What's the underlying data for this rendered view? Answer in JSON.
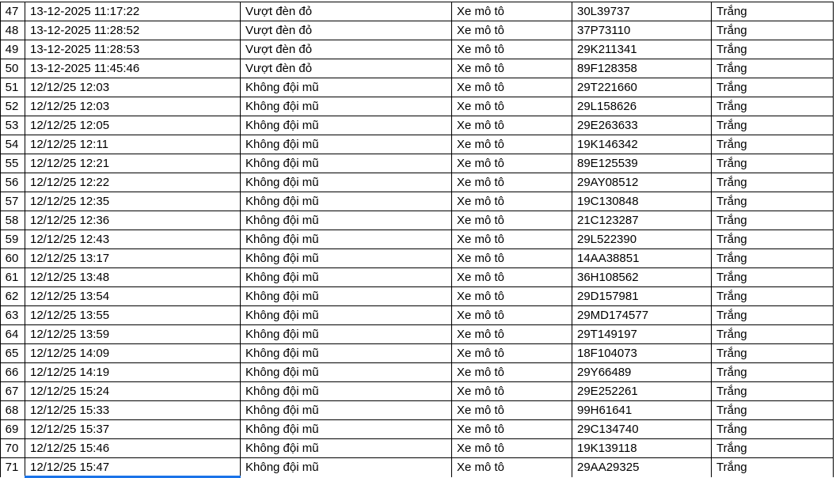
{
  "app": {
    "view": "spreadsheet-table",
    "grid_line_color": "#000000",
    "text_color": "#000000",
    "selection_border_color": "#1a73e8"
  },
  "table": {
    "rows": [
      {
        "no": "47",
        "datetime": "13-12-2025 11:17:22",
        "violation": "Vượt đèn đỏ",
        "vehicle": "Xe mô tô",
        "plate": "30L39737",
        "color": "Trắng"
      },
      {
        "no": "48",
        "datetime": "13-12-2025 11:28:52",
        "violation": "Vượt đèn đỏ",
        "vehicle": "Xe mô tô",
        "plate": "37P73110",
        "color": "Trắng"
      },
      {
        "no": "49",
        "datetime": "13-12-2025 11:28:53",
        "violation": "Vượt đèn đỏ",
        "vehicle": "Xe mô tô",
        "plate": "29K211341",
        "color": "Trắng"
      },
      {
        "no": "50",
        "datetime": "13-12-2025 11:45:46",
        "violation": "Vượt đèn đỏ",
        "vehicle": "Xe mô tô",
        "plate": "89F128358",
        "color": "Trắng"
      },
      {
        "no": "51",
        "datetime": "12/12/25 12:03",
        "violation": "Không đội mũ",
        "vehicle": "Xe mô tô",
        "plate": "29T221660",
        "color": "Trắng"
      },
      {
        "no": "52",
        "datetime": "12/12/25 12:03",
        "violation": "Không đội mũ",
        "vehicle": "Xe mô tô",
        "plate": "29L158626",
        "color": "Trắng"
      },
      {
        "no": "53",
        "datetime": "12/12/25 12:05",
        "violation": "Không đội mũ",
        "vehicle": "Xe mô tô",
        "plate": "29E263633",
        "color": "Trắng"
      },
      {
        "no": "54",
        "datetime": "12/12/25 12:11",
        "violation": "Không đội mũ",
        "vehicle": "Xe mô tô",
        "plate": "19K146342",
        "color": "Trắng"
      },
      {
        "no": "55",
        "datetime": "12/12/25 12:21",
        "violation": "Không đội mũ",
        "vehicle": "Xe mô tô",
        "plate": "89E125539",
        "color": "Trắng"
      },
      {
        "no": "56",
        "datetime": "12/12/25 12:22",
        "violation": "Không đội mũ",
        "vehicle": "Xe mô tô",
        "plate": "29AY08512",
        "color": "Trắng"
      },
      {
        "no": "57",
        "datetime": "12/12/25 12:35",
        "violation": "Không đội mũ",
        "vehicle": "Xe mô tô",
        "plate": "19C130848",
        "color": "Trắng"
      },
      {
        "no": "58",
        "datetime": "12/12/25 12:36",
        "violation": "Không đội mũ",
        "vehicle": "Xe mô tô",
        "plate": "21C123287",
        "color": "Trắng"
      },
      {
        "no": "59",
        "datetime": "12/12/25 12:43",
        "violation": "Không đội mũ",
        "vehicle": "Xe mô tô",
        "plate": "29L522390",
        "color": "Trắng"
      },
      {
        "no": "60",
        "datetime": "12/12/25 13:17",
        "violation": "Không đội mũ",
        "vehicle": "Xe mô tô",
        "plate": "14AA38851",
        "color": "Trắng"
      },
      {
        "no": "61",
        "datetime": "12/12/25 13:48",
        "violation": "Không đội mũ",
        "vehicle": "Xe mô tô",
        "plate": "36H108562",
        "color": "Trắng"
      },
      {
        "no": "62",
        "datetime": "12/12/25 13:54",
        "violation": "Không đội mũ",
        "vehicle": "Xe mô tô",
        "plate": "29D157981",
        "color": "Trắng"
      },
      {
        "no": "63",
        "datetime": "12/12/25 13:55",
        "violation": "Không đội mũ",
        "vehicle": "Xe mô tô",
        "plate": "29MD174577",
        "color": "Trắng"
      },
      {
        "no": "64",
        "datetime": "12/12/25 13:59",
        "violation": "Không đội mũ",
        "vehicle": "Xe mô tô",
        "plate": "29T149197",
        "color": "Trắng"
      },
      {
        "no": "65",
        "datetime": "12/12/25 14:09",
        "violation": "Không đội mũ",
        "vehicle": "Xe mô tô",
        "plate": "18F104073",
        "color": "Trắng"
      },
      {
        "no": "66",
        "datetime": "12/12/25 14:19",
        "violation": "Không đội mũ",
        "vehicle": "Xe mô tô",
        "plate": "29Y66489",
        "color": "Trắng"
      },
      {
        "no": "67",
        "datetime": "12/12/25 15:24",
        "violation": "Không đội mũ",
        "vehicle": "Xe mô tô",
        "plate": "29E252261",
        "color": "Trắng"
      },
      {
        "no": "68",
        "datetime": "12/12/25 15:33",
        "violation": "Không đội mũ",
        "vehicle": "Xe mô tô",
        "plate": "99H61641",
        "color": "Trắng"
      },
      {
        "no": "69",
        "datetime": "12/12/25 15:37",
        "violation": "Không đội mũ",
        "vehicle": "Xe mô tô",
        "plate": "29C134740",
        "color": "Trắng"
      },
      {
        "no": "70",
        "datetime": "12/12/25 15:46",
        "violation": "Không đội mũ",
        "vehicle": "Xe mô tô",
        "plate": "19K139118",
        "color": "Trắng"
      },
      {
        "no": "71",
        "datetime": "12/12/25 15:47",
        "violation": "Không đội mũ",
        "vehicle": "Xe mô tô",
        "plate": "29AA29325",
        "color": "Trắng"
      }
    ]
  }
}
